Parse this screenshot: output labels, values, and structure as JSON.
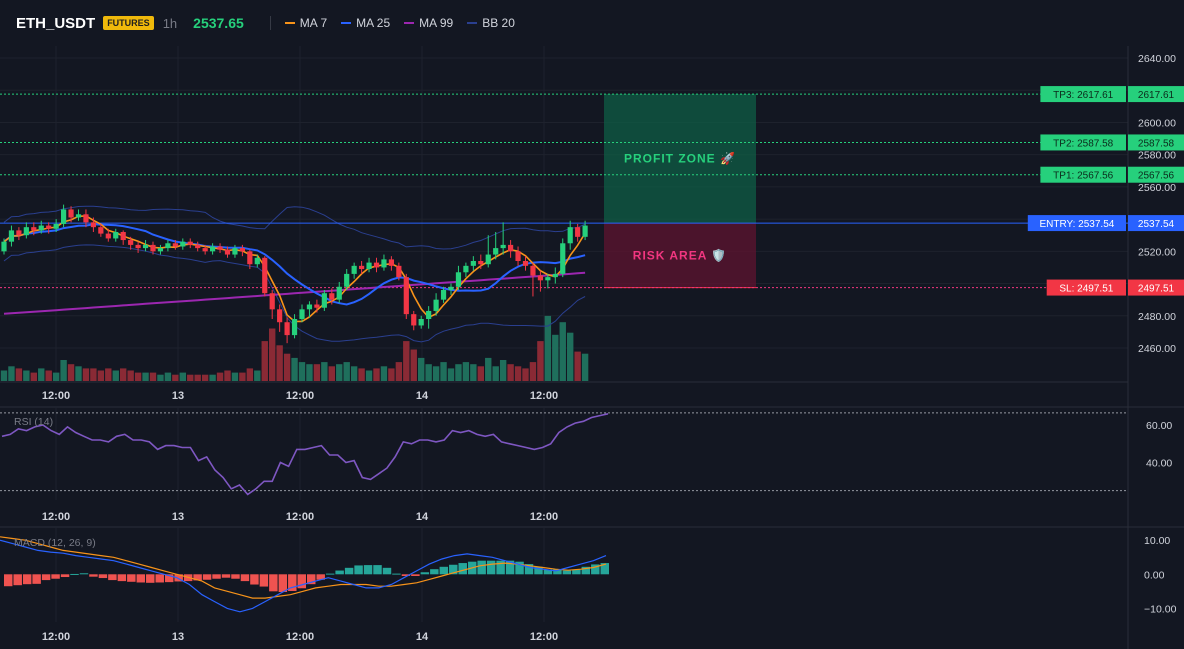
{
  "header": {
    "symbol": "ETH_USDT",
    "badge": "FUTURES",
    "timeframe": "1h",
    "price": "2537.65",
    "indicators": [
      {
        "label": "MA 7",
        "color": "#f7931a"
      },
      {
        "label": "MA 25",
        "color": "#2962ff"
      },
      {
        "label": "MA 99",
        "color": "#9c27b0"
      },
      {
        "label": "BB 20",
        "color": "#2a3f8f"
      }
    ]
  },
  "levels": {
    "tp3": {
      "label": "TP3: 2617.61",
      "axis": "2617.61",
      "value": 2617.61
    },
    "tp2": {
      "label": "TP2: 2587.58",
      "axis": "2587.58",
      "value": 2587.58
    },
    "tp1": {
      "label": "TP1: 2567.56",
      "axis": "2567.56",
      "value": 2567.56
    },
    "entry": {
      "label": "ENTRY: 2537.54",
      "axis": "2537.54",
      "value": 2537.54
    },
    "sl": {
      "label": "SL: 2497.51",
      "axis": "2497.51",
      "value": 2497.51
    }
  },
  "zones": {
    "profit": "PROFIT ZONE 🚀",
    "risk": "RISK AREA 🛡️"
  },
  "xaxis": {
    "ticks": [
      "12:00",
      "13",
      "12:00",
      "14",
      "12:00"
    ]
  },
  "chart_data": [
    {
      "type": "candlestick",
      "title": "ETH_USDT 1h",
      "ylim": [
        2440,
        2645
      ],
      "yticks": [
        "2640.00",
        "2620.00",
        "2600.00",
        "2580.00",
        "2560.00",
        "2540.00",
        "2520.00",
        "2500.00",
        "2480.00",
        "2460.00"
      ],
      "ytick_values": [
        2640,
        2620,
        2600,
        2580,
        2560,
        2540,
        2520,
        2500,
        2480,
        2460
      ],
      "candles": [
        [
          2520,
          2526,
          2528,
          2518
        ],
        [
          2526,
          2533,
          2536,
          2523
        ],
        [
          2533,
          2530,
          2535,
          2527
        ],
        [
          2530,
          2535,
          2538,
          2528
        ],
        [
          2535,
          2533,
          2538,
          2530
        ],
        [
          2533,
          2536,
          2539,
          2531
        ],
        [
          2536,
          2534,
          2538,
          2531
        ],
        [
          2534,
          2537,
          2540,
          2532
        ],
        [
          2537,
          2546,
          2549,
          2535
        ],
        [
          2546,
          2541,
          2548,
          2538
        ],
        [
          2541,
          2543,
          2546,
          2539
        ],
        [
          2543,
          2538,
          2546,
          2535
        ],
        [
          2538,
          2535,
          2541,
          2532
        ],
        [
          2535,
          2531,
          2537,
          2529
        ],
        [
          2531,
          2528,
          2534,
          2526
        ],
        [
          2528,
          2532,
          2534,
          2526
        ],
        [
          2532,
          2527,
          2533,
          2524
        ],
        [
          2527,
          2524,
          2529,
          2521
        ],
        [
          2524,
          2522,
          2526,
          2519
        ],
        [
          2522,
          2524,
          2527,
          2520
        ],
        [
          2524,
          2520,
          2526,
          2518
        ],
        [
          2520,
          2522,
          2524,
          2518
        ],
        [
          2522,
          2525,
          2527,
          2520
        ],
        [
          2525,
          2523,
          2527,
          2521
        ],
        [
          2523,
          2526,
          2528,
          2521
        ],
        [
          2526,
          2524,
          2528,
          2522
        ],
        [
          2524,
          2522,
          2526,
          2520
        ],
        [
          2522,
          2520,
          2524,
          2518
        ],
        [
          2520,
          2523,
          2525,
          2518
        ],
        [
          2523,
          2521,
          2525,
          2519
        ],
        [
          2521,
          2518,
          2523,
          2516
        ],
        [
          2518,
          2522,
          2524,
          2516
        ],
        [
          2522,
          2520,
          2524,
          2517
        ],
        [
          2520,
          2512,
          2521,
          2509
        ],
        [
          2512,
          2516,
          2518,
          2510
        ],
        [
          2516,
          2494,
          2517,
          2492
        ],
        [
          2494,
          2484,
          2496,
          2478
        ],
        [
          2484,
          2476,
          2487,
          2470
        ],
        [
          2476,
          2468,
          2479,
          2463
        ],
        [
          2468,
          2478,
          2481,
          2466
        ],
        [
          2478,
          2484,
          2487,
          2476
        ],
        [
          2484,
          2487,
          2489,
          2479
        ],
        [
          2487,
          2485,
          2490,
          2482
        ],
        [
          2485,
          2494,
          2496,
          2483
        ],
        [
          2494,
          2490,
          2497,
          2487
        ],
        [
          2490,
          2498,
          2501,
          2488
        ],
        [
          2498,
          2506,
          2509,
          2496
        ],
        [
          2506,
          2511,
          2513,
          2503
        ],
        [
          2511,
          2509,
          2514,
          2506
        ],
        [
          2509,
          2513,
          2516,
          2507
        ],
        [
          2513,
          2510,
          2516,
          2507
        ],
        [
          2510,
          2515,
          2518,
          2508
        ],
        [
          2515,
          2511,
          2517,
          2508
        ],
        [
          2511,
          2504,
          2513,
          2502
        ],
        [
          2504,
          2481,
          2506,
          2478
        ],
        [
          2481,
          2474,
          2483,
          2471
        ],
        [
          2474,
          2478,
          2480,
          2472
        ],
        [
          2478,
          2483,
          2486,
          2472
        ],
        [
          2483,
          2490,
          2494,
          2480
        ],
        [
          2490,
          2496,
          2498,
          2488
        ],
        [
          2496,
          2498,
          2500,
          2493
        ],
        [
          2498,
          2507,
          2511,
          2496
        ],
        [
          2507,
          2511,
          2513,
          2504
        ],
        [
          2511,
          2514,
          2517,
          2508
        ],
        [
          2514,
          2512,
          2518,
          2509
        ],
        [
          2512,
          2518,
          2530,
          2510
        ],
        [
          2518,
          2522,
          2532,
          2515
        ],
        [
          2522,
          2524,
          2538,
          2518
        ],
        [
          2524,
          2520,
          2527,
          2516
        ],
        [
          2520,
          2514,
          2523,
          2511
        ],
        [
          2514,
          2511,
          2517,
          2508
        ],
        [
          2511,
          2505,
          2513,
          2492
        ],
        [
          2505,
          2502,
          2508,
          2495
        ],
        [
          2502,
          2504,
          2506,
          2497
        ],
        [
          2504,
          2506,
          2510,
          2500
        ],
        [
          2506,
          2525,
          2528,
          2504
        ],
        [
          2525,
          2535,
          2539,
          2521
        ],
        [
          2535,
          2529,
          2537,
          2526
        ],
        [
          2529,
          2536,
          2539,
          2527
        ]
      ],
      "volume": [
        5,
        7,
        6,
        5,
        4,
        6,
        5,
        4,
        10,
        8,
        7,
        6,
        6,
        5,
        6,
        5,
        6,
        5,
        4,
        4,
        4,
        3,
        4,
        3,
        4,
        3,
        3,
        3,
        3,
        4,
        5,
        4,
        4,
        6,
        5,
        19,
        25,
        17,
        13,
        11,
        9,
        8,
        8,
        9,
        7,
        8,
        9,
        7,
        6,
        5,
        6,
        7,
        6,
        9,
        19,
        15,
        11,
        8,
        7,
        9,
        6,
        8,
        9,
        8,
        7,
        11,
        7,
        10,
        8,
        7,
        6,
        9,
        19,
        31,
        22,
        28,
        23,
        14,
        13,
        16,
        14
      ],
      "volume_colors_up": "#1f6f5c",
      "volume_colors_down": "#8a2a35"
    },
    {
      "type": "line",
      "title": "RSI (14)",
      "yticks": [
        "60.00",
        "40.00"
      ],
      "ytick_values": [
        60,
        40
      ],
      "ylim": [
        20,
        68
      ],
      "values": [
        54,
        55,
        58,
        57,
        59,
        60,
        57,
        55,
        59,
        56,
        54,
        52,
        52,
        51,
        54,
        55,
        52,
        52,
        51,
        47,
        49,
        49,
        48,
        48,
        41,
        43,
        36,
        32,
        26,
        28,
        23,
        26,
        30,
        30,
        40,
        38,
        47,
        47,
        48,
        49,
        44,
        44,
        40,
        41,
        32,
        31,
        34,
        37,
        43,
        51,
        50,
        52,
        52,
        51,
        52,
        57,
        56,
        57,
        55,
        54,
        55,
        51,
        50,
        49,
        48,
        47,
        48,
        50,
        56,
        59,
        61,
        62,
        64,
        65,
        66
      ]
    },
    {
      "type": "bar",
      "title": "MACD (12, 26, 9)",
      "yticks": [
        "10.00",
        "0.00",
        "−10.00"
      ],
      "ytick_values": [
        10,
        0,
        -10
      ],
      "ylim": [
        -14,
        13
      ],
      "histogram": [
        -3.5,
        -3.2,
        -2.9,
        -2.8,
        -1.7,
        -1.3,
        -0.8,
        0.1,
        0.3,
        -0.7,
        -1.1,
        -1.7,
        -2.0,
        -2.2,
        -2.4,
        -2.5,
        -2.4,
        -2.3,
        -2.1,
        -2.0,
        -1.8,
        -1.6,
        -1.3,
        -1.0,
        -1.3,
        -2.0,
        -3.0,
        -3.6,
        -5.0,
        -5.2,
        -4.9,
        -4.1,
        -2.9,
        -1.6,
        0.2,
        1.1,
        1.9,
        2.6,
        2.7,
        2.7,
        1.9,
        0.2,
        -0.5,
        -0.5,
        0.6,
        1.5,
        2.2,
        2.8,
        3.3,
        3.7,
        4.0,
        4.0,
        4.0,
        4.0,
        3.7,
        3.0,
        2.2,
        1.4,
        1.4,
        1.1,
        1.4,
        2.2,
        2.9,
        3.3
      ],
      "macd": [
        10,
        9,
        8,
        7,
        6.5,
        6.2,
        5.5,
        5,
        4.5,
        4,
        3,
        2,
        1,
        0,
        -1,
        -3,
        -6,
        -8,
        -10,
        -11,
        -10,
        -8,
        -6,
        -4,
        -3,
        -2,
        -1,
        -2,
        -3,
        -4,
        -4,
        -3,
        -1,
        1,
        3,
        4.5,
        5.5,
        6,
        5.5,
        5,
        4,
        3,
        2,
        1.5,
        1,
        2,
        3,
        4,
        5.5
      ],
      "signal": [
        11,
        10.5,
        10,
        9,
        8,
        7,
        6.5,
        6,
        5.5,
        5,
        4,
        3,
        2,
        1,
        0,
        -1,
        -2,
        -4,
        -5,
        -6,
        -7,
        -7,
        -6.5,
        -6,
        -5,
        -4,
        -3.5,
        -3,
        -3,
        -3,
        -3.5,
        -3.5,
        -3,
        -2.5,
        -1.5,
        -0.5,
        0.5,
        1.5,
        2.5,
        3,
        3.3,
        3,
        2.5,
        2,
        1.5,
        1.2,
        1.5,
        2,
        3
      ]
    }
  ]
}
